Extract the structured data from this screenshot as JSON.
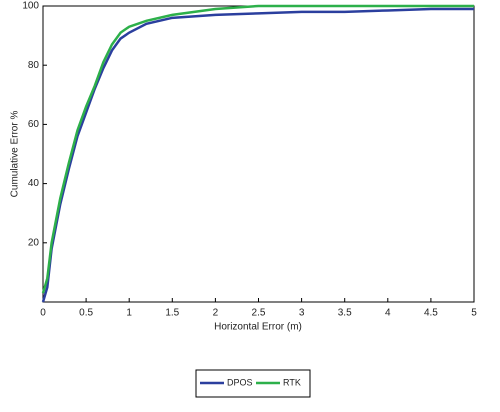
{
  "chart_data": {
    "type": "line",
    "xlabel": "Horizontal Error (m)",
    "ylabel": "Cumulative Error %",
    "x": [
      0,
      0.05,
      0.1,
      0.2,
      0.3,
      0.4,
      0.5,
      0.6,
      0.7,
      0.8,
      0.9,
      1,
      1.2,
      1.5,
      2,
      2.5,
      3,
      3.5,
      4,
      4.5,
      5
    ],
    "series": [
      {
        "name": "DPOS",
        "color": "#2b3f9e",
        "values": [
          0,
          5,
          18,
          33,
          45,
          56,
          64,
          72,
          79,
          85,
          89,
          91,
          94,
          96,
          97,
          97.5,
          98,
          98,
          98.5,
          99,
          99
        ]
      },
      {
        "name": "RTK",
        "color": "#2db04a",
        "values": [
          3,
          8,
          20,
          35,
          47,
          58,
          66,
          73,
          81,
          87,
          91,
          93,
          95,
          97,
          99,
          100,
          100,
          100,
          100,
          100,
          100
        ]
      }
    ],
    "xlim": [
      0,
      5
    ],
    "xticks": [
      0,
      0.5,
      1,
      1.5,
      2,
      2.5,
      3,
      3.5,
      4,
      4.5,
      5
    ],
    "ylim": [
      0,
      100
    ],
    "yticks": [
      20,
      40,
      60,
      80,
      100
    ],
    "grid": false,
    "legend": "bottom"
  }
}
